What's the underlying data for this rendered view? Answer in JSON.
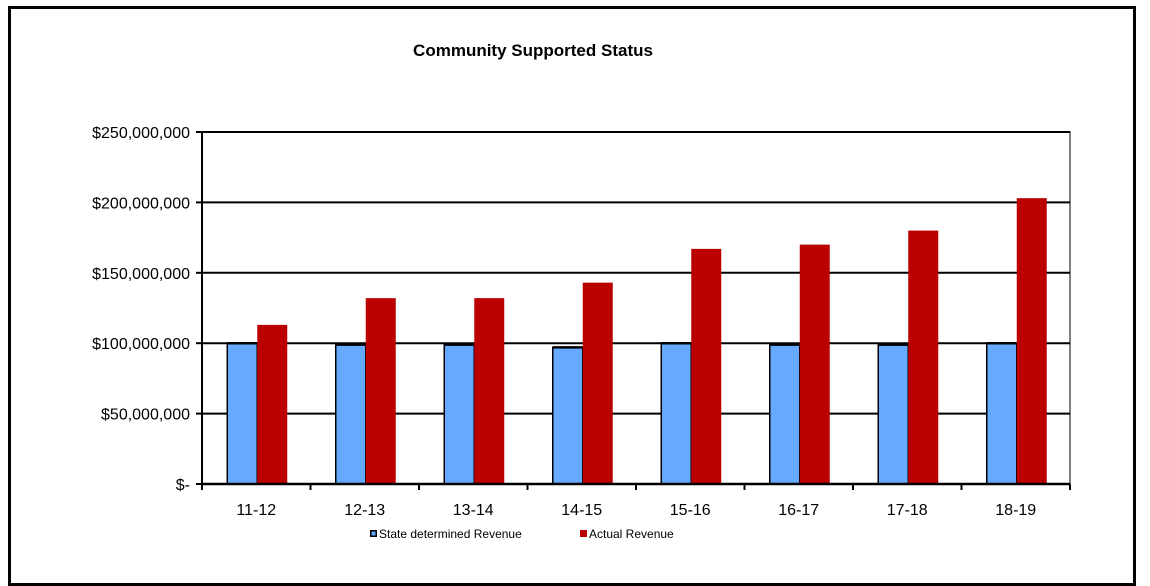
{
  "chart_data": {
    "type": "bar",
    "title": "Community Supported Status",
    "categories": [
      "11-12",
      "12-13",
      "13-14",
      "14-15",
      "15-16",
      "16-17",
      "17-18",
      "18-19"
    ],
    "series": [
      {
        "name": "State determined Revenue",
        "color": "#66aaff",
        "values": [
          100000000,
          99000000,
          99000000,
          97000000,
          100000000,
          99000000,
          99000000,
          100000000
        ]
      },
      {
        "name": "Actual Revenue",
        "color": "#bb0000",
        "values": [
          113000000,
          132000000,
          132000000,
          143000000,
          167000000,
          170000000,
          180000000,
          203000000
        ]
      }
    ],
    "yticks": [
      "$-",
      "$50,000,000",
      "$100,000,000",
      "$150,000,000",
      "$200,000,000",
      "$250,000,000"
    ],
    "ylim": [
      0,
      250000000
    ],
    "grid": true,
    "legend_position": "bottom"
  }
}
